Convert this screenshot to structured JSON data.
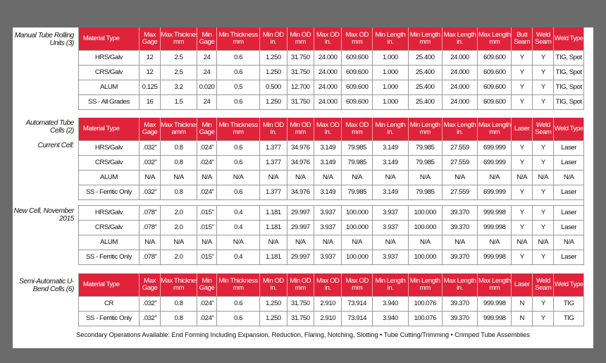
{
  "header": {
    "cols": [
      "Material Type",
      "Max Gage",
      "Max Thickness mm",
      "Min Gage",
      "Min Thickness mm",
      "Min OD in.",
      "Min OD mm",
      "Max OD in.",
      "Max OD mm",
      "Min Length in.",
      "Min Length mm",
      "Max Length in.",
      "Max Length mm"
    ],
    "last3_a": [
      "Butt Seam",
      "Weld Seam",
      "Weld Type"
    ],
    "last3_b": [
      "Laser",
      "Weld Seam",
      "Weld Type"
    ]
  },
  "sections": [
    {
      "label": "Manual Tube Rolling Units (3)",
      "thickness_hdr": "Max Thickness mm",
      "rows": [
        [
          "HRS/Galv",
          "12",
          "2.5",
          "24",
          "0.6",
          "1.250",
          "31.750",
          "24.000",
          "609.600",
          "1.000",
          "25.400",
          "24.000",
          "609.600",
          "Y",
          "Y",
          "TIG, Spot"
        ],
        [
          "CRS/Galv",
          "12",
          "2.5",
          "24",
          "0.6",
          "1.250",
          "31.750",
          "24.000",
          "609.600",
          "1.000",
          "25.400",
          "24.000",
          "609.600",
          "Y",
          "Y",
          "TIG, Spot"
        ],
        [
          "ALUM",
          "0.125",
          "3.2",
          "0.020",
          "0.5",
          "0.500",
          "12.700",
          "24.000",
          "609.600",
          "1.000",
          "25.400",
          "24.000",
          "609.600",
          "Y",
          "Y",
          "TIG, Spot"
        ],
        [
          "SS - All Grades",
          "16",
          "1.5",
          "24",
          "0.6",
          "1.250",
          "31.750",
          "24.000",
          "609.600",
          "1.000",
          "25.400",
          "24.000",
          "609.600",
          "Y",
          "Y",
          "TIG, Spot"
        ]
      ]
    },
    {
      "label": "Automated Tube Cells (2)",
      "thickness_hdr": "Max Thickness amm",
      "sub1": "Current Cell:",
      "rows1": [
        [
          "HRS/Galv",
          ".032\"",
          "0.8",
          ".024\"",
          "0.6",
          "1.377",
          "34.976",
          "3.149",
          "79.985",
          "3.149",
          "79.985",
          "27.559",
          "699.999",
          "Y",
          "Y",
          "Laser"
        ],
        [
          "CRS/Galv",
          ".032\"",
          "0.8",
          ".024\"",
          "0.6",
          "1.377",
          "34.976",
          "3.149",
          "79.985",
          "3.149",
          "79.985",
          "27.559",
          "699.999",
          "Y",
          "Y",
          "Laser"
        ],
        [
          "ALUM",
          "N/A",
          "N/A",
          "N/A",
          "N/A",
          "N/A",
          "N/A",
          "N/A",
          "N/A",
          "N/A",
          "N/A",
          "N/A",
          "N/A",
          "N/A",
          "N/A",
          "N/A"
        ],
        [
          "SS - Ferritic Only",
          ".032\"",
          "0.8",
          ".024\"",
          "0.6",
          "1.377",
          "34.976",
          "3.149",
          "79.985",
          "3.149",
          "79.985",
          "27.559",
          "699.999",
          "Y",
          "Y",
          "Laser"
        ]
      ],
      "sub2": "New Cell, November 2015",
      "rows2": [
        [
          "HRS/Galv",
          ".078\"",
          "2.0",
          ".015\"",
          "0.4",
          "1.181",
          "29.997",
          "3.937",
          "100.000",
          "3.937",
          "100.000",
          "39.370",
          "999.998",
          "Y",
          "Y",
          "Laser"
        ],
        [
          "CRS/Galv",
          ".078\"",
          "2.0",
          ".015\"",
          "0.4",
          "1.181",
          "29.997",
          "3.937",
          "100.000",
          "3.937",
          "100.000",
          "39.370",
          "999.998",
          "Y",
          "Y",
          "Laser"
        ],
        [
          "ALUM",
          "N/A",
          "N/A",
          "N/A",
          "N/A",
          "N/A",
          "N/A",
          "N/A",
          "N/A",
          "N/A",
          "N/A",
          "N/A",
          "N/A",
          "N/A",
          "N/A",
          "N/A"
        ],
        [
          "SS - Ferritic Only",
          ".078\"",
          "2.0",
          ".015\"",
          "0.4",
          "1.181",
          "29.997",
          "3.937",
          "100.000",
          "3.937",
          "100.000",
          "39.370",
          "999.998",
          "Y",
          "Y",
          "Laser"
        ]
      ]
    },
    {
      "label": "Semi-Automatic U-Bend Cells (6)",
      "thickness_hdr": "Max Thickness mm",
      "rows": [
        [
          "CR",
          ".032\"",
          "0.8",
          ".024\"",
          "0.6",
          "1.250",
          "31.750",
          "2.910",
          "73.914",
          "3.940",
          "100.076",
          "39.370",
          "999.998",
          "N",
          "Y",
          "TIG"
        ],
        [
          "SS - Ferritic Only",
          ".032\"",
          "0.8",
          ".024\"",
          "0.6",
          "1.250",
          "31.750",
          "2.910",
          "73.914",
          "3.940",
          "100.076",
          "39.370",
          "999.998",
          "N",
          "Y",
          "TIG"
        ]
      ]
    }
  ],
  "footer": "Secondary Operations Available: End Forming Including Expansion, Reduction, Flaring, Notching, Slotting • Tube Cutting/Trimming • Crimped Tube Assemblies"
}
